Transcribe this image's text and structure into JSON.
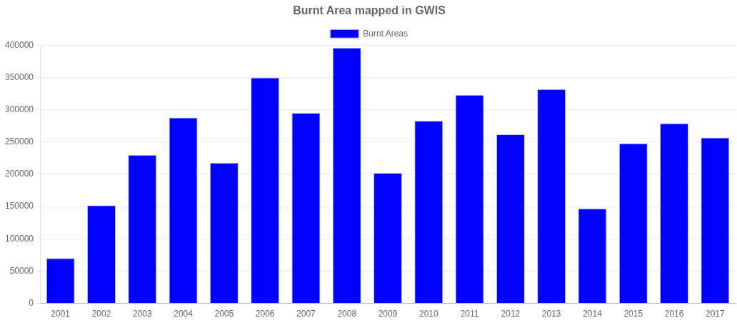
{
  "chart_data": {
    "type": "bar",
    "title": "Burnt Area mapped in GWIS",
    "categories": [
      "2001",
      "2002",
      "2003",
      "2004",
      "2005",
      "2006",
      "2007",
      "2008",
      "2009",
      "2010",
      "2011",
      "2012",
      "2013",
      "2014",
      "2015",
      "2016",
      "2017"
    ],
    "series": [
      {
        "name": "Burnt Areas",
        "color": "#0000ff",
        "values": [
          70000,
          152000,
          230000,
          288000,
          218000,
          350000,
          295000,
          396000,
          202000,
          283000,
          323000,
          262000,
          332000,
          147000,
          248000,
          279000,
          257000
        ]
      }
    ],
    "ylim": [
      0,
      400000
    ],
    "yticks": [
      0,
      50000,
      100000,
      150000,
      200000,
      250000,
      300000,
      350000,
      400000
    ],
    "grid": "y",
    "legend": "top"
  }
}
